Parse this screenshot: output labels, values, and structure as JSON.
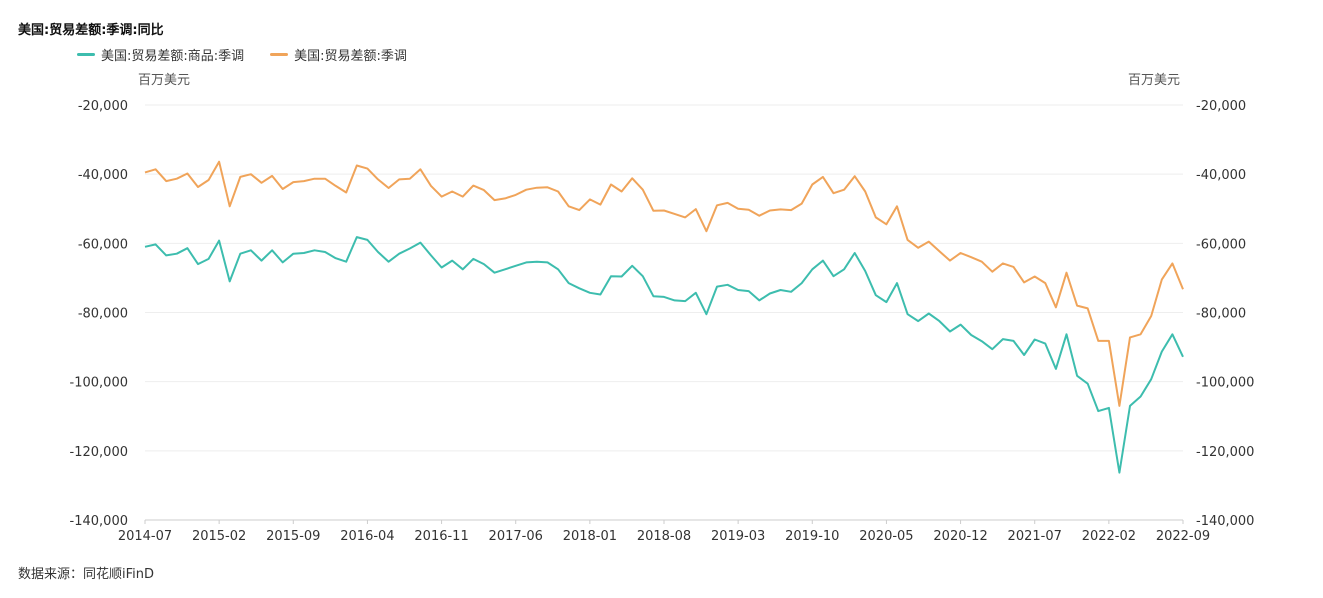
{
  "title": "美国:贸易差额:季调:同比",
  "source": "数据来源：同花顺iFinD",
  "chart_data": {
    "type": "line",
    "title": "美国:贸易差额:季调:同比",
    "ylabel_left": "百万美元",
    "ylabel_right": "百万美元",
    "ylim": [
      -140000,
      -20000
    ],
    "yticks": [
      -20000,
      -40000,
      -60000,
      -80000,
      -100000,
      -120000,
      -140000
    ],
    "ytick_labels": [
      "-20,000",
      "-40,000",
      "-60,000",
      "-80,000",
      "-100,000",
      "-120,000",
      "-140,000"
    ],
    "x_start": "2014-07",
    "x_end": "2022-09",
    "xtick_labels": [
      "2014-07",
      "2015-02",
      "2015-09",
      "2016-04",
      "2016-11",
      "2017-06",
      "2018-01",
      "2018-08",
      "2019-03",
      "2019-10",
      "2020-05",
      "2020-12",
      "2021-07",
      "2022-02",
      "2022-09"
    ],
    "legend_placement": "top-left",
    "grid": true,
    "series": [
      {
        "name": "美国:贸易差额:商品:季调",
        "color": "#3dbdae",
        "values": [
          -61000,
          -60300,
          -63500,
          -63000,
          -61400,
          -66000,
          -64500,
          -59200,
          -71000,
          -63000,
          -62000,
          -65000,
          -62000,
          -65500,
          -63000,
          -62800,
          -62000,
          -62500,
          -64300,
          -65300,
          -58200,
          -59000,
          -62500,
          -65300,
          -63000,
          -61500,
          -59800,
          -63500,
          -67000,
          -65000,
          -67500,
          -64500,
          -66000,
          -68500,
          -67500,
          -66500,
          -65500,
          -65300,
          -65500,
          -67500,
          -71500,
          -73000,
          -74300,
          -74800,
          -69500,
          -69600,
          -66500,
          -69500,
          -75300,
          -75500,
          -76500,
          -76700,
          -74300,
          -80500,
          -72500,
          -72000,
          -73500,
          -73800,
          -76500,
          -74500,
          -73500,
          -74000,
          -71500,
          -67500,
          -65000,
          -69500,
          -67500,
          -62800,
          -68000,
          -75000,
          -77000,
          -71500,
          -80500,
          -82500,
          -80300,
          -82500,
          -85500,
          -83500,
          -86500,
          -88300,
          -90600,
          -87700,
          -88200,
          -92300,
          -87800,
          -89000,
          -96300,
          -86300,
          -98300,
          -100600,
          -108500,
          -107600,
          -126300,
          -107000,
          -104300,
          -99300,
          -91300,
          -86300,
          -92800
        ]
      },
      {
        "name": "美国:贸易差额:季调",
        "color": "#f0a45a",
        "values": [
          -39500,
          -38600,
          -42000,
          -41300,
          -39800,
          -43700,
          -41700,
          -36400,
          -49300,
          -40800,
          -40000,
          -42500,
          -40500,
          -44300,
          -42300,
          -42000,
          -41300,
          -41300,
          -43400,
          -45300,
          -37500,
          -38400,
          -41500,
          -44000,
          -41500,
          -41300,
          -38600,
          -43400,
          -46500,
          -45000,
          -46500,
          -43300,
          -44600,
          -47500,
          -47000,
          -46000,
          -44500,
          -43900,
          -43800,
          -45000,
          -49300,
          -50400,
          -47300,
          -48800,
          -43000,
          -45000,
          -41200,
          -44500,
          -50600,
          -50500,
          -51500,
          -52500,
          -50100,
          -56500,
          -49000,
          -48300,
          -50000,
          -50300,
          -52000,
          -50500,
          -50200,
          -50400,
          -48500,
          -43000,
          -40800,
          -45500,
          -44500,
          -40600,
          -45000,
          -52500,
          -54500,
          -49300,
          -59000,
          -61300,
          -59500,
          -62300,
          -65000,
          -62800,
          -64000,
          -65300,
          -68200,
          -65800,
          -66800,
          -71300,
          -69600,
          -71500,
          -78500,
          -68500,
          -78000,
          -78800,
          -88200,
          -88200,
          -107000,
          -87200,
          -86300,
          -81000,
          -70500,
          -65800,
          -73300
        ]
      }
    ]
  }
}
